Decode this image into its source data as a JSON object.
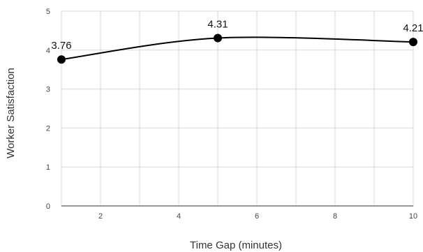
{
  "chart_data": {
    "type": "line",
    "title": "",
    "xlabel": "Time Gap (minutes)",
    "ylabel": "Worker Satisfaction",
    "xlim": [
      1,
      10
    ],
    "ylim": [
      0,
      5
    ],
    "x_ticks": [
      2,
      4,
      6,
      8,
      10
    ],
    "y_ticks": [
      0,
      1,
      2,
      3,
      4,
      5
    ],
    "x_minor_gridlines": [
      1,
      2,
      3,
      4,
      5,
      6,
      7,
      8,
      9,
      10
    ],
    "grid": true,
    "smooth": true,
    "legend": "none",
    "series": [
      {
        "points": [
          {
            "x": 1,
            "y": 3.76,
            "label": "3.76"
          },
          {
            "x": 5,
            "y": 4.31,
            "label": "4.31"
          },
          {
            "x": 10,
            "y": 4.21,
            "label": "4.21"
          }
        ]
      }
    ],
    "colors": {
      "line": "#000000",
      "marker": "#000000",
      "grid": "#d9d9d9",
      "axis": "#333333"
    }
  }
}
